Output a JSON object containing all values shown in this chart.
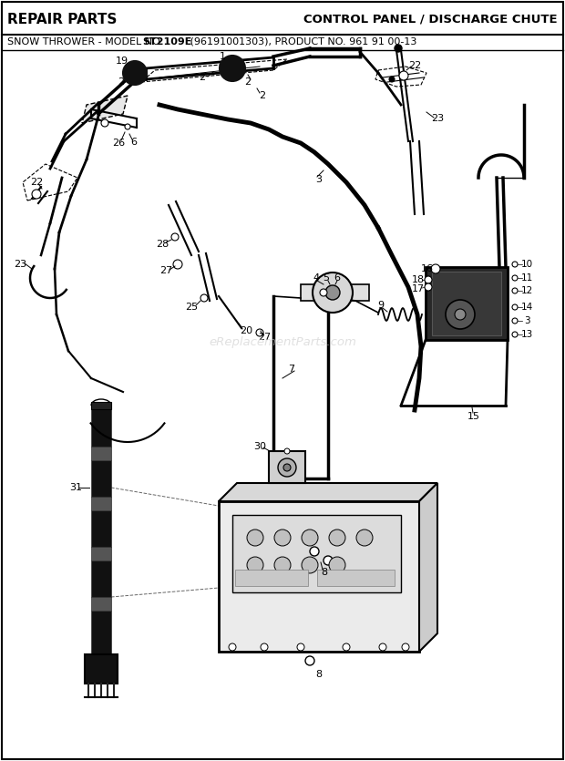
{
  "title_left": "REPAIR PARTS",
  "title_right": "CONTROL PANEL / DISCHARGE CHUTE",
  "subtitle_normal1": "SNOW THROWER - MODEL NO. ",
  "subtitle_bold": "ST2109E",
  "subtitle_normal2": " (96191001303), PRODUCT NO. 961 91 00-13",
  "watermark": "eReplacementParts.com",
  "bg_color": "#ffffff",
  "border_color": "#000000"
}
